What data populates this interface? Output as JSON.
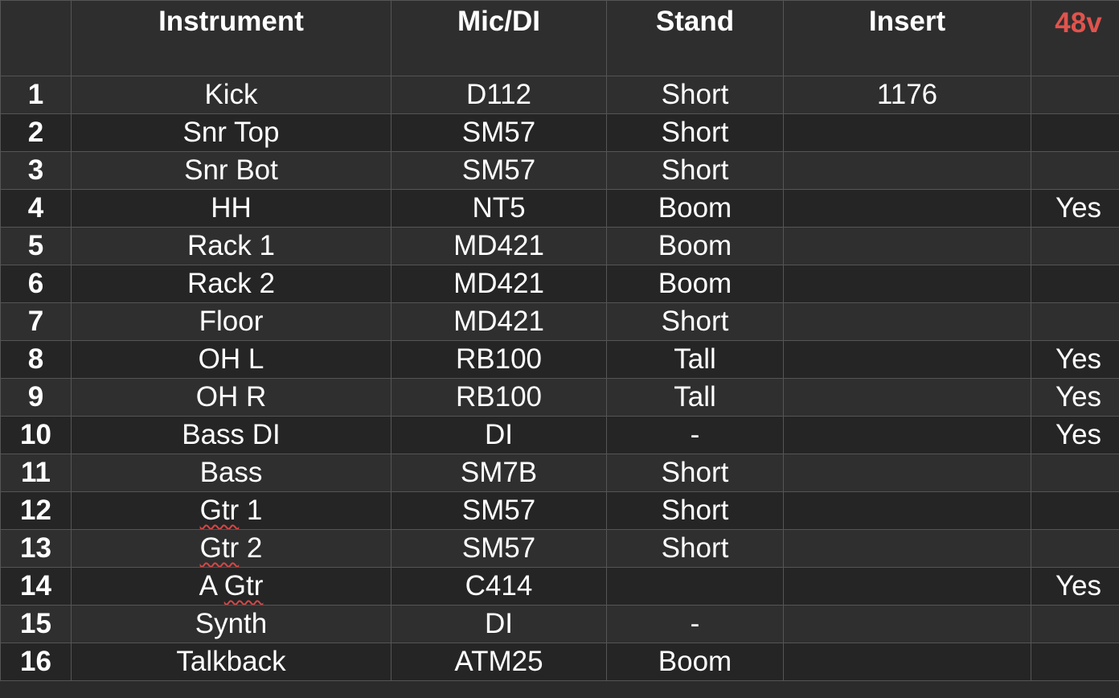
{
  "headers": {
    "num": "",
    "instrument": "Instrument",
    "mic": "Mic/DI",
    "stand": "Stand",
    "insert": "Insert",
    "phantom": "48v"
  },
  "colors": {
    "background": "#2b2b2b",
    "grid": "#555555",
    "text": "#ffffff",
    "phantom_header": "#e0534d",
    "spellcheck": "#d64545"
  },
  "rows": [
    {
      "num": "1",
      "instrument": "Kick",
      "mic": "D112",
      "stand": "Short",
      "insert": "1176",
      "phantom": ""
    },
    {
      "num": "2",
      "instrument": "Snr Top",
      "mic": "SM57",
      "stand": "Short",
      "insert": "",
      "phantom": ""
    },
    {
      "num": "3",
      "instrument": "Snr Bot",
      "mic": "SM57",
      "stand": "Short",
      "insert": "",
      "phantom": ""
    },
    {
      "num": "4",
      "instrument": "HH",
      "mic": "NT5",
      "stand": "Boom",
      "insert": "",
      "phantom": "Yes"
    },
    {
      "num": "5",
      "instrument": "Rack 1",
      "mic": "MD421",
      "stand": "Boom",
      "insert": "",
      "phantom": ""
    },
    {
      "num": "6",
      "instrument": "Rack 2",
      "mic": "MD421",
      "stand": "Boom",
      "insert": "",
      "phantom": ""
    },
    {
      "num": "7",
      "instrument": "Floor",
      "mic": "MD421",
      "stand": "Short",
      "insert": "",
      "phantom": ""
    },
    {
      "num": "8",
      "instrument": "OH L",
      "mic": "RB100",
      "stand": "Tall",
      "insert": "",
      "phantom": "Yes"
    },
    {
      "num": "9",
      "instrument": "OH R",
      "mic": "RB100",
      "stand": "Tall",
      "insert": "",
      "phantom": "Yes"
    },
    {
      "num": "10",
      "instrument": "Bass DI",
      "mic": "DI",
      "stand": "-",
      "insert": "",
      "phantom": "Yes"
    },
    {
      "num": "11",
      "instrument": "Bass",
      "mic": "SM7B",
      "stand": "Short",
      "insert": "",
      "phantom": ""
    },
    {
      "num": "12",
      "instrument": "Gtr 1",
      "mic": "SM57",
      "stand": "Short",
      "insert": "",
      "phantom": ""
    },
    {
      "num": "13",
      "instrument": "Gtr 2",
      "mic": "SM57",
      "stand": "Short",
      "insert": "",
      "phantom": ""
    },
    {
      "num": "14",
      "instrument": "A Gtr",
      "mic": "C414",
      "stand": "",
      "insert": "",
      "phantom": "Yes"
    },
    {
      "num": "15",
      "instrument": "Synth",
      "mic": "DI",
      "stand": "-",
      "insert": "",
      "phantom": ""
    },
    {
      "num": "16",
      "instrument": "Talkback",
      "mic": "ATM25",
      "stand": "Boom",
      "insert": "",
      "phantom": ""
    }
  ]
}
